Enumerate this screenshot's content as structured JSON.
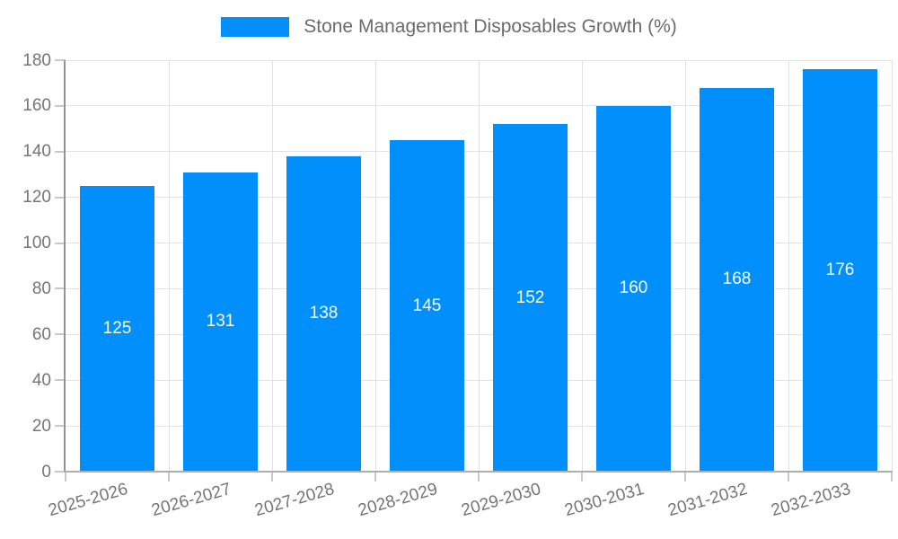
{
  "legend": {
    "label": "Stone Management Disposables Growth (%)"
  },
  "chart_data": {
    "type": "bar",
    "title": "Stone Management Disposables Growth (%)",
    "categories": [
      "2025-2026",
      "2026-2027",
      "2027-2028",
      "2028-2029",
      "2029-2030",
      "2030-2031",
      "2031-2032",
      "2032-2033"
    ],
    "values": [
      125,
      131,
      138,
      145,
      152,
      160,
      168,
      176
    ],
    "series": [
      {
        "name": "Stone Management Disposables Growth (%)",
        "values": [
          125,
          131,
          138,
          145,
          152,
          160,
          168,
          176
        ]
      }
    ],
    "xlabel": "",
    "ylabel": "",
    "ylim": [
      0,
      180
    ],
    "yticks": [
      0,
      20,
      40,
      60,
      80,
      100,
      120,
      140,
      160,
      180
    ],
    "grid": true,
    "legend_position": "top",
    "value_labels": "inside-center",
    "colors": {
      "bar": "#008FFB",
      "value_label": "#ffffff",
      "axis_label": "#757575",
      "legend_text": "#6b6b6b",
      "gridline": "#e3e3e3",
      "y_axis_line": "#949494",
      "x_axis_line": "#aeaeae",
      "tick": "#c9c9c9",
      "background": "#ffffff"
    }
  }
}
